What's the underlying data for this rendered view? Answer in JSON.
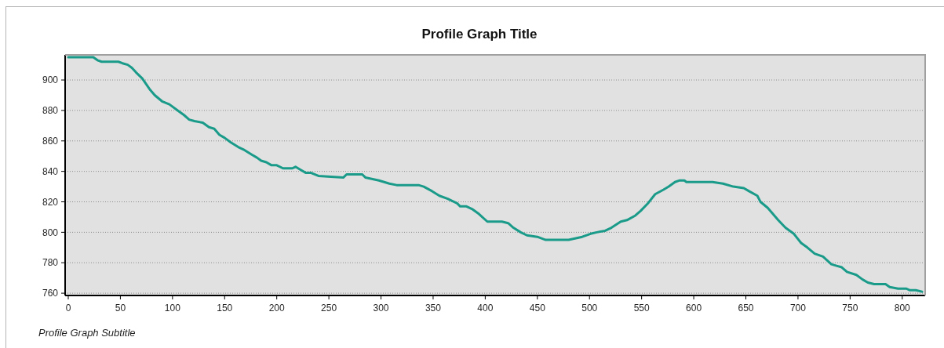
{
  "chart_data": {
    "type": "line",
    "title": "Profile Graph Title",
    "subtitle": "Profile Graph Subtitle",
    "x": [
      0,
      24,
      28,
      32,
      48,
      52,
      57,
      61,
      65,
      71,
      78,
      83,
      90,
      97,
      105,
      111,
      116,
      121,
      129,
      135,
      140,
      145,
      150,
      156,
      163,
      169,
      176,
      181,
      185,
      190,
      195,
      200,
      206,
      215,
      218,
      223,
      228,
      233,
      240,
      264,
      267,
      282,
      285,
      298,
      308,
      315,
      336,
      341,
      349,
      356,
      364,
      373,
      376,
      382,
      388,
      394,
      402,
      416,
      422,
      427,
      434,
      440,
      450,
      458,
      470,
      480,
      493,
      501,
      507,
      515,
      521,
      530,
      536,
      544,
      549,
      556,
      563,
      571,
      576,
      582,
      586,
      591,
      593,
      608,
      618,
      628,
      638,
      648,
      653,
      661,
      664,
      671,
      681,
      688,
      696,
      703,
      709,
      716,
      724,
      732,
      737,
      742,
      747,
      756,
      762,
      767,
      773,
      784,
      788,
      796,
      804,
      807,
      813,
      819
    ],
    "series": [
      {
        "color": "#1a9b8a",
        "values": [
          915,
          915,
          913,
          912,
          912,
          911,
          910,
          908,
          905,
          901,
          894,
          890,
          886,
          884,
          880,
          877,
          874,
          873,
          872,
          869,
          868,
          864,
          862,
          859,
          856,
          854,
          851,
          849,
          847,
          846,
          844,
          844,
          842,
          842,
          843,
          841,
          839,
          839,
          837,
          836,
          838,
          838,
          836,
          834,
          832,
          831,
          831,
          830,
          827,
          824,
          822,
          819,
          817,
          817,
          815,
          812,
          807,
          807,
          806,
          803,
          800,
          798,
          797,
          795,
          795,
          795,
          797,
          799,
          800,
          801,
          803,
          807,
          808,
          811,
          814,
          819,
          825,
          828,
          830,
          833,
          834,
          834,
          833,
          833,
          833,
          832,
          830,
          829,
          827,
          824,
          820,
          816,
          808,
          803,
          799,
          793,
          790,
          786,
          784,
          779,
          778,
          777,
          774,
          772,
          769,
          767,
          766,
          766,
          764,
          763,
          763,
          762,
          762,
          761
        ]
      }
    ],
    "xlim": [
      -3,
      822
    ],
    "ylim": [
      758.5,
      916.5
    ],
    "xticks": [
      0,
      50,
      100,
      150,
      200,
      250,
      300,
      350,
      400,
      450,
      500,
      550,
      600,
      650,
      700,
      750,
      800
    ],
    "yticks": [
      760,
      780,
      800,
      820,
      840,
      860,
      880,
      900
    ],
    "grid": "y",
    "line_style": "solid"
  }
}
